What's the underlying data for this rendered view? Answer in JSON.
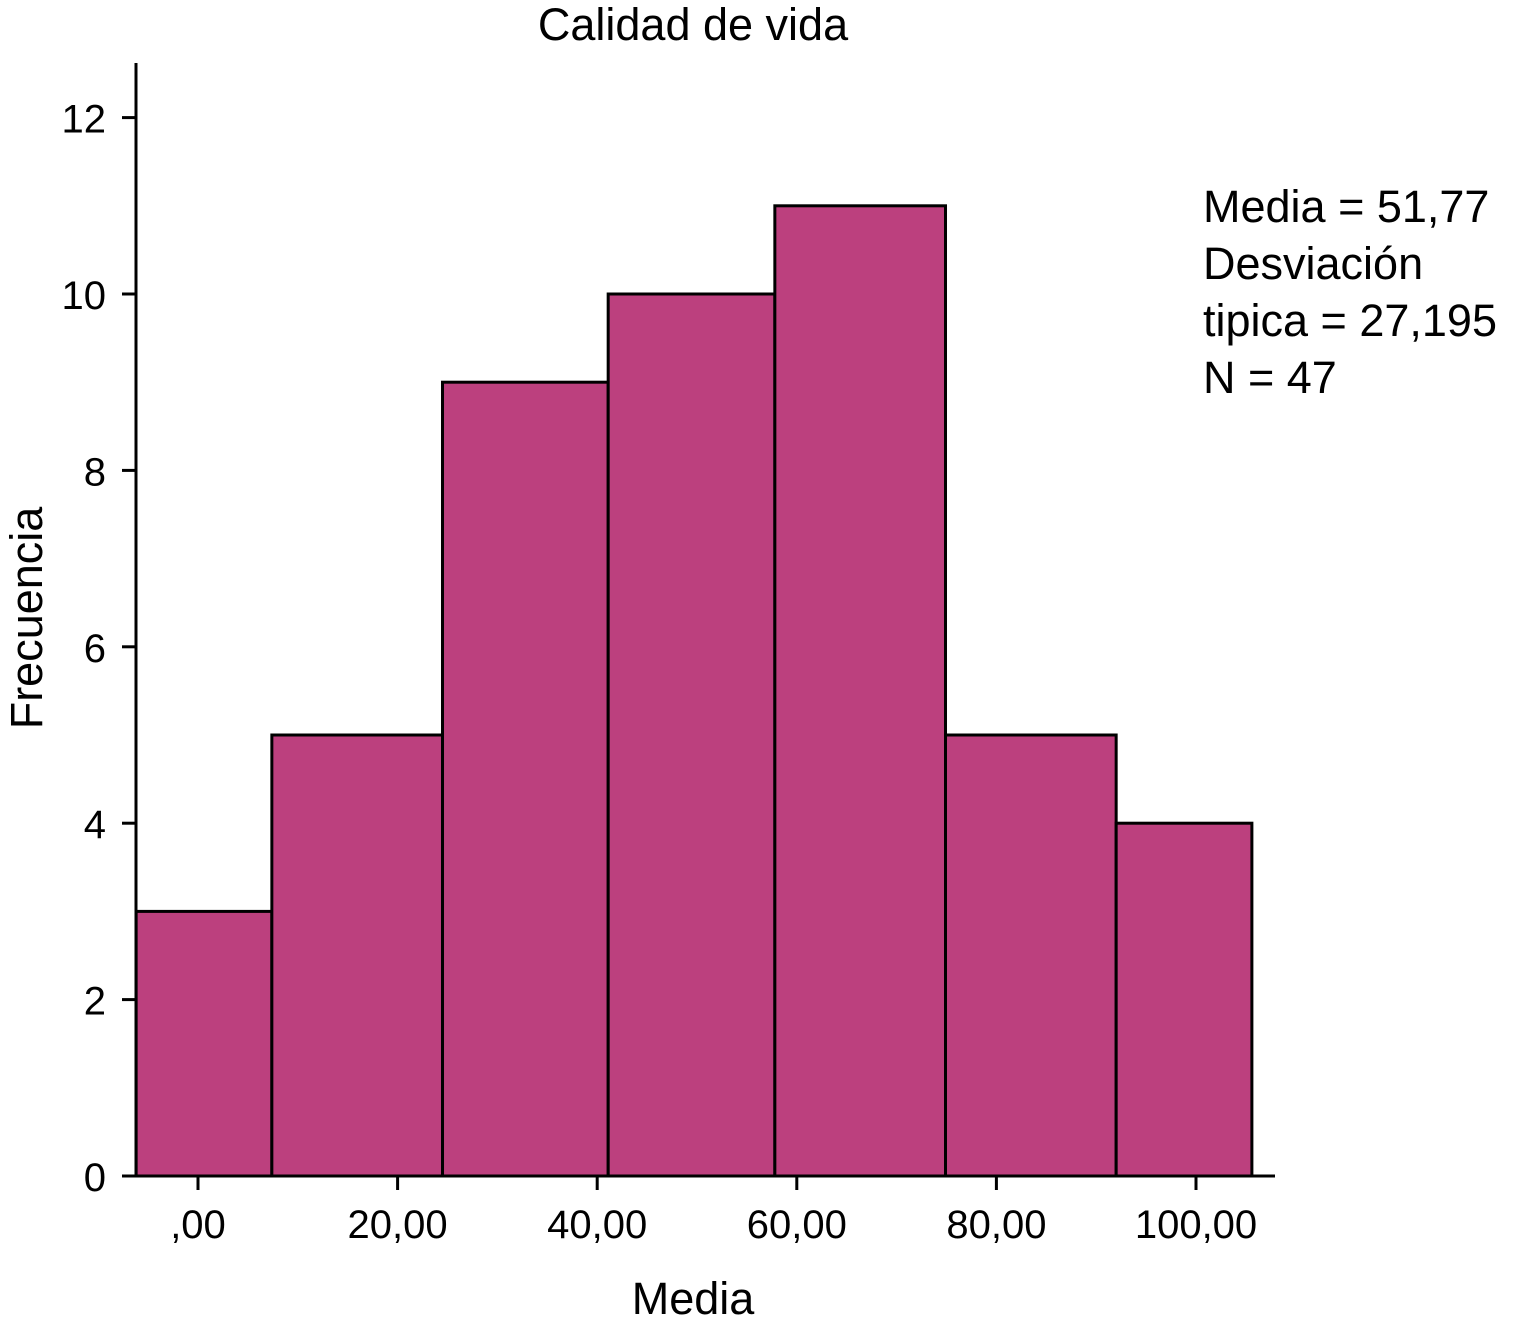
{
  "chart_data": {
    "type": "bar",
    "title": "Calidad de vida",
    "xlabel": "Media",
    "ylabel": "Frecuencia",
    "bins": [
      {
        "start": -6.2,
        "end": 7.4,
        "count": 3
      },
      {
        "start": 7.4,
        "end": 24.5,
        "count": 5
      },
      {
        "start": 24.5,
        "end": 41.1,
        "count": 9
      },
      {
        "start": 41.1,
        "end": 57.8,
        "count": 10
      },
      {
        "start": 57.8,
        "end": 74.9,
        "count": 11
      },
      {
        "start": 74.9,
        "end": 92.0,
        "count": 5
      },
      {
        "start": 92.0,
        "end": 105.6,
        "count": 4
      }
    ],
    "xlim": [
      -7.4,
      108.3
    ],
    "ylim": [
      0,
      12.6
    ],
    "x_ticks": [
      0,
      20,
      40,
      60,
      80,
      100
    ],
    "x_tick_labels": [
      ",00",
      "20,00",
      "40,00",
      "60,00",
      "80,00",
      "100,00"
    ],
    "y_ticks": [
      0,
      2,
      4,
      6,
      8,
      10,
      12
    ],
    "y_tick_labels": [
      "0",
      "2",
      "4",
      "6",
      "8",
      "10",
      "12"
    ],
    "stats_lines": [
      "Media = 51,77",
      "Desviación",
      "tipica = 27,195",
      "N = 47"
    ],
    "grid": false,
    "bar_color": "#bc407e",
    "edge_color": "#000000"
  }
}
